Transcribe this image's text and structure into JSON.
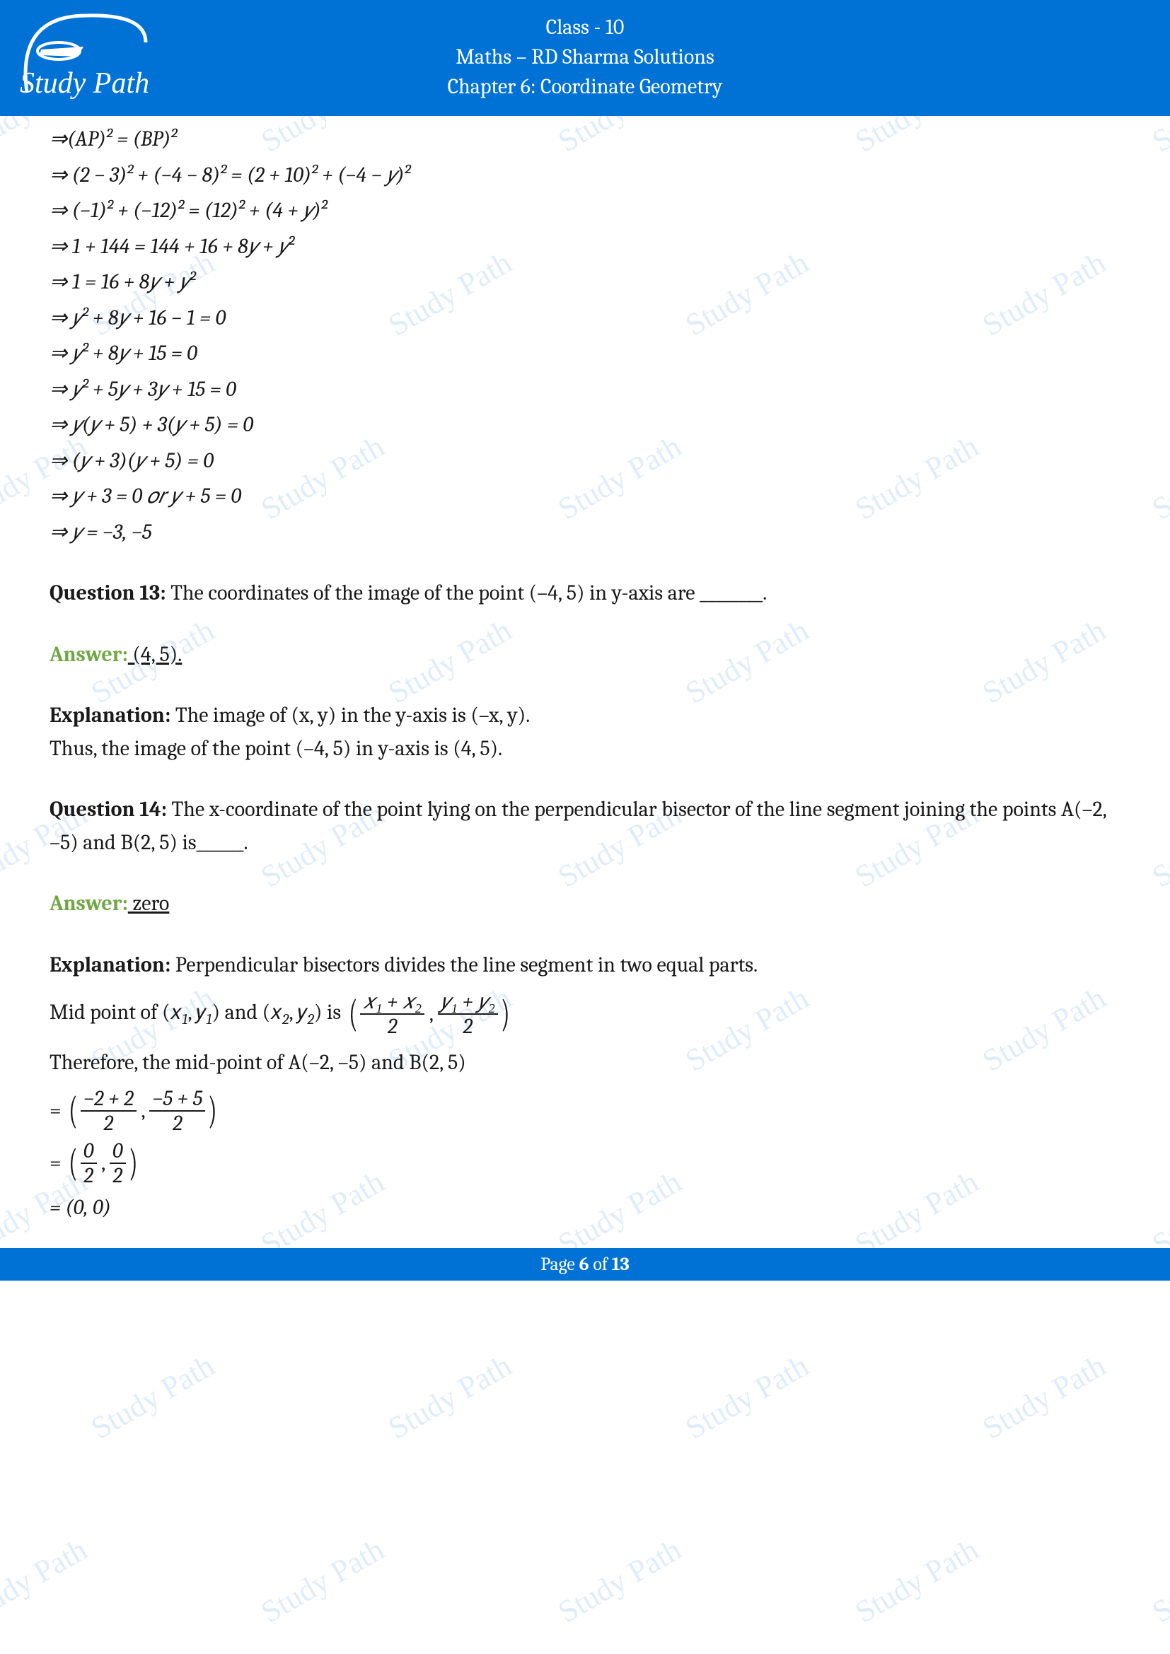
{
  "header": {
    "class_line": "Class - 10",
    "subject_line": "Maths – RD Sharma Solutions",
    "chapter_line": "Chapter 6: Coordinate Geometry",
    "logo_text": "Study Path"
  },
  "math_block_1": {
    "l1": "⇒(AP)² = (BP)²",
    "l2": "⇒ (2 − 3)² + (−4 − 8)² = (2 + 10)² + (−4 − 𝑦)²",
    "l3": "⇒ (−1)² + (−12)² = (12)² + (4 + 𝑦)²",
    "l4": "⇒ 1 + 144 = 144 + 16 + 8𝑦 + 𝑦²",
    "l5": "⇒ 1 = 16 + 8𝑦 + 𝑦²",
    "l6": "⇒ 𝑦² + 8𝑦 + 16 − 1 = 0",
    "l7": "⇒ 𝑦² + 8𝑦 + 15 = 0",
    "l8": "⇒ 𝑦² + 5𝑦 + 3𝑦 + 15 = 0",
    "l9": "⇒ 𝑦(𝑦 + 5) + 3(𝑦 + 5) = 0",
    "l10": "⇒ (𝑦 + 3)(𝑦 + 5) = 0",
    "l11": "⇒ 𝑦 + 3 = 0  𝑜𝑟  𝑦 + 5 = 0",
    "l12": "⇒ 𝑦 = −3, −5"
  },
  "q13": {
    "label": "Question 13:",
    "text": " The coordinates of the image of the point (–4, 5) in y-axis are ________.",
    "answer_label": "Answer:",
    "answer_text": " (4, 5).",
    "explanation_label": "Explanation:",
    "exp_l1": " The image of (x, y) in the y-axis is (–x, y).",
    "exp_l2": "Thus, the image of the point (–4, 5) in y-axis is (4, 5)."
  },
  "q14": {
    "label": "Question 14:",
    "text": " The x-coordinate of the point lying on the perpendicular bisector of the line segment joining the points A(–2, –5) and B(2, 5) is______.",
    "answer_label": "Answer:",
    "answer_text": " zero",
    "explanation_label": "Explanation:",
    "exp_l1": " Perpendicular bisectors divides the line segment in two equal parts.",
    "midpoint_prefix": "Mid point of (𝑥",
    "midpoint_mid1": ",  𝑦",
    "midpoint_mid2": ") and (𝑥",
    "midpoint_mid3": ",  𝑦",
    "midpoint_suffix": ") is ",
    "frac1_num": "𝑥₁ + 𝑥₂",
    "frac1_den": "2",
    "frac2_num": "𝑦₁ + 𝑦₂",
    "frac2_den": "2",
    "therefore": "Therefore, the mid-point of A(–2, –5) and B(2, 5)",
    "calc1_f1_num": "−2 + 2",
    "calc1_f1_den": "2",
    "calc1_f2_num": "−5 + 5",
    "calc1_f2_den": "2",
    "calc2_f1_num": "0",
    "calc2_f1_den": "2",
    "calc2_f2_num": "0",
    "calc2_f2_den": "2",
    "calc3": "= (0, 0)"
  },
  "footer": {
    "prefix": "Page ",
    "page_num": "6",
    "middle": " of ",
    "total": "13"
  },
  "watermark_text": "Study Path",
  "colors": {
    "header_bg": "#0072d6",
    "answer_green": "#6fa843",
    "watermark": "#d6e8f7"
  }
}
